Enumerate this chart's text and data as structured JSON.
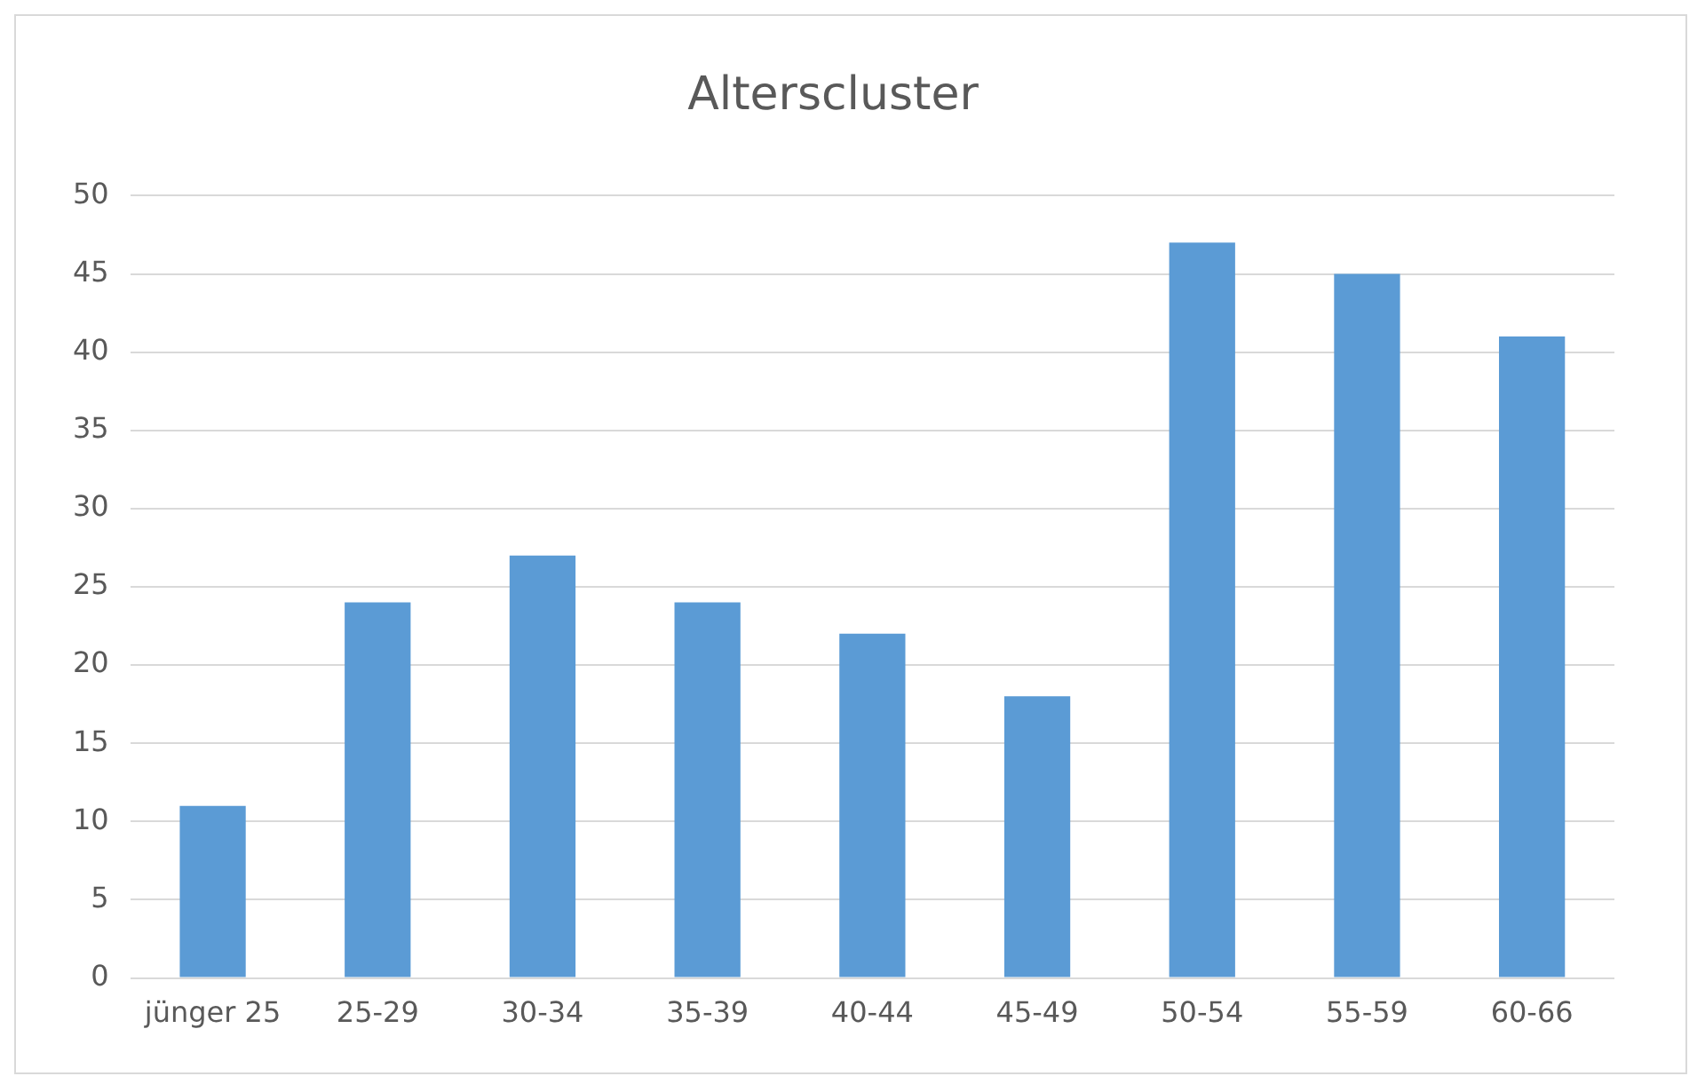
{
  "chart_data": {
    "type": "bar",
    "title": "Alterscluster",
    "categories": [
      "jünger 25",
      "25-29",
      "30-34",
      "35-39",
      "40-44",
      "45-49",
      "50-54",
      "55-59",
      "60-66"
    ],
    "values": [
      11,
      24,
      27,
      24,
      22,
      18,
      47,
      45,
      41
    ],
    "color": "#5b9bd5",
    "ylim": [
      0,
      50
    ],
    "yticks": [
      0,
      5,
      10,
      15,
      20,
      25,
      30,
      35,
      40,
      45,
      50
    ],
    "grid": "y",
    "legend": false
  }
}
